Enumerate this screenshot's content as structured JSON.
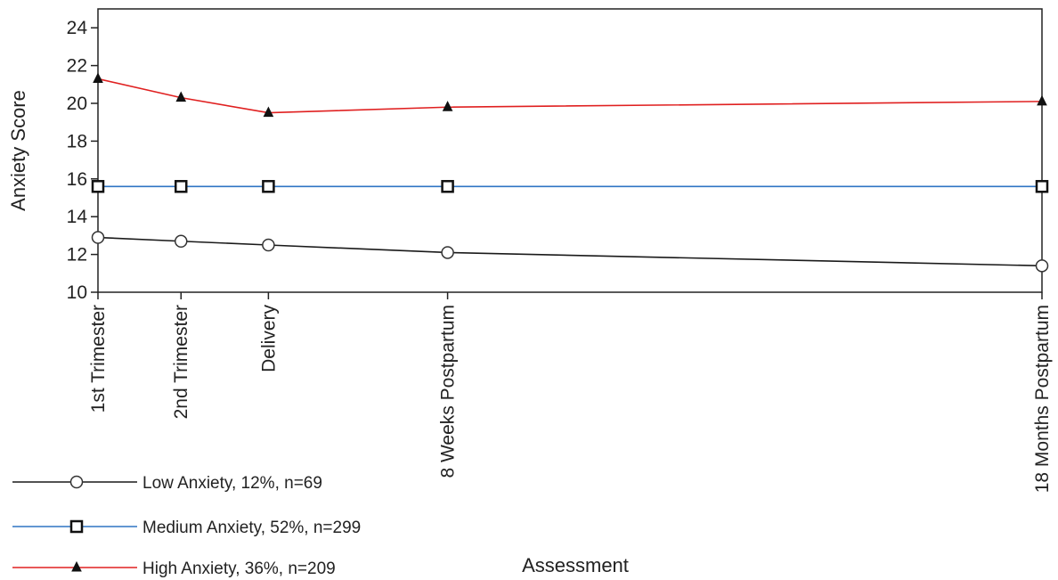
{
  "chart_data": {
    "type": "line",
    "title": "",
    "xlabel": "Assessment",
    "ylabel": "Anxiety Score",
    "ylim": [
      10,
      25
    ],
    "yticks": [
      10,
      12,
      14,
      16,
      18,
      20,
      22,
      24
    ],
    "grid": false,
    "legend_position": "bottom-left",
    "categories": [
      "1st Trimester",
      "2nd Trimester",
      "Delivery",
      "8 Weeks Postpartum",
      "18 Months Postpartum"
    ],
    "x_weeks": [
      0,
      9.5,
      19.5,
      40,
      108
    ],
    "series": [
      {
        "name": "Low Anxiety, 12%, n=69",
        "values": [
          12.9,
          12.7,
          12.5,
          12.1,
          11.4
        ],
        "color": "#1a1a1a",
        "marker": "circle"
      },
      {
        "name": "Medium Anxiety, 52%, n=299",
        "values": [
          15.6,
          15.6,
          15.6,
          15.6,
          15.6
        ],
        "color": "#2f75c4",
        "marker": "square"
      },
      {
        "name": "High Anxiety, 36%, n=209",
        "values": [
          21.3,
          20.3,
          19.5,
          19.8,
          20.1
        ],
        "color": "#e02020",
        "marker": "triangle"
      }
    ]
  }
}
